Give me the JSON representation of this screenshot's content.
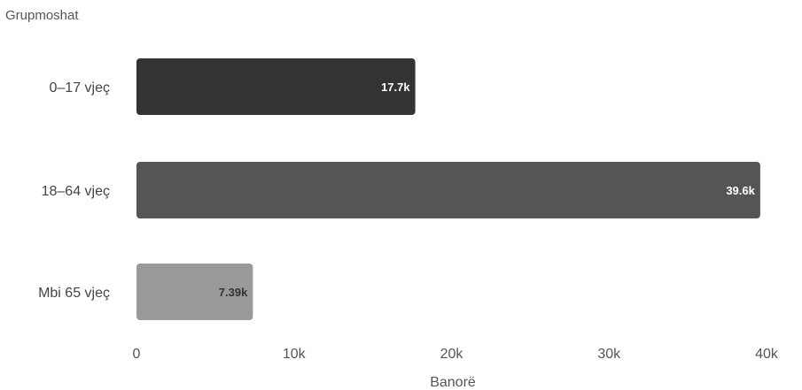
{
  "chart_data": {
    "type": "bar",
    "orientation": "horizontal",
    "ylabel": "Grupmoshat",
    "xlabel": "Banorë",
    "categories": [
      "0–17 vjeç",
      "18–64 vjeç",
      "Mbi 65 vjeç"
    ],
    "values": [
      17700,
      39600,
      7390
    ],
    "data_labels": [
      "17.7k",
      "39.6k",
      "7.39k"
    ],
    "bar_colors": [
      "#333333",
      "#555555",
      "#999999"
    ],
    "label_colors": [
      "#ffffff",
      "#ffffff",
      "#333333"
    ],
    "xlim": [
      0,
      40000
    ],
    "x_ticks": [
      0,
      10000,
      20000,
      30000,
      40000
    ],
    "x_tick_labels": [
      "0",
      "10k",
      "20k",
      "30k",
      "40k"
    ],
    "grid": false,
    "legend": "none"
  }
}
